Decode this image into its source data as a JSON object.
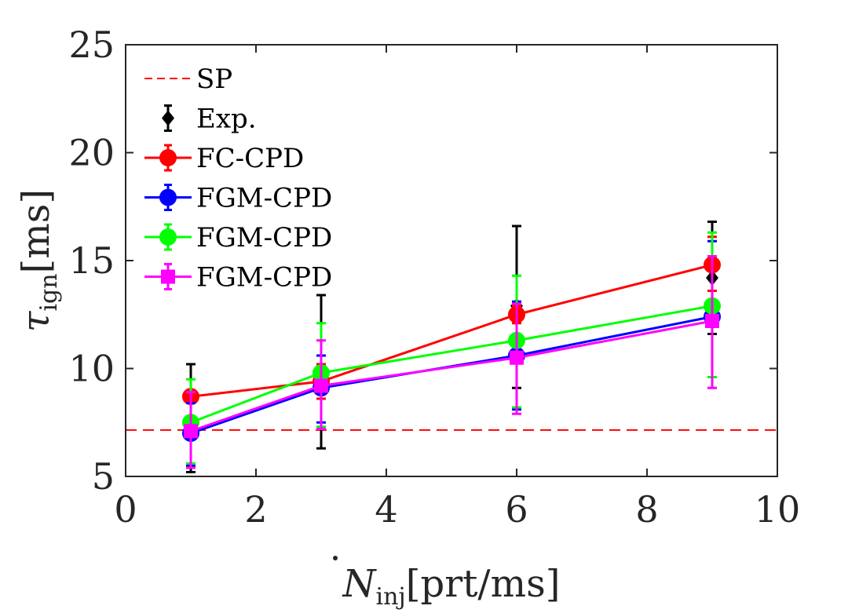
{
  "chart_data": {
    "type": "line",
    "title": "",
    "xlabel": {
      "main": "N",
      "sub": "inj",
      "unit": "[prt/ms]"
    },
    "ylabel": {
      "main": "τ",
      "sub": "ign",
      "unit": "[ms]"
    },
    "xlim": [
      0,
      10
    ],
    "ylim": [
      5,
      25
    ],
    "xticks": [
      "0",
      "2",
      "4",
      "6",
      "8",
      "10"
    ],
    "yticks": [
      "5",
      "10",
      "15",
      "20",
      "25"
    ],
    "grid": false,
    "legend_position": "top-left",
    "reference_line": {
      "name": "SP",
      "y": 7.15,
      "color": "#ff0000",
      "style": "dashed"
    },
    "series": [
      {
        "name": "Exp.",
        "color": "#000000",
        "marker": "diamond",
        "connected": false,
        "x": [
          1,
          3,
          6,
          9
        ],
        "y": [
          7.6,
          9.9,
          12.9,
          14.2
        ],
        "err_low": [
          5.2,
          6.3,
          9.1,
          11.6
        ],
        "err_high": [
          10.2,
          13.4,
          16.6,
          16.8
        ]
      },
      {
        "name": "FC-CPD",
        "color": "#ff0000",
        "marker": "circle",
        "connected": true,
        "x": [
          1,
          3,
          6,
          9
        ],
        "y": [
          8.7,
          9.4,
          12.5,
          14.8
        ],
        "err_low": [
          8.4,
          8.6,
          12.1,
          13.6
        ],
        "err_high": [
          9.0,
          10.2,
          12.9,
          16.1
        ]
      },
      {
        "name": "FGM-CPD",
        "color": "#0000ff",
        "marker": "circle",
        "connected": true,
        "x": [
          1,
          3,
          6,
          9
        ],
        "y": [
          7.0,
          9.1,
          10.6,
          12.4
        ],
        "err_low": [
          5.5,
          7.5,
          8.1,
          9.6
        ],
        "err_high": [
          8.4,
          10.6,
          13.1,
          15.9
        ]
      },
      {
        "name": "FGM-CPD",
        "color": "#00ff00",
        "marker": "circle",
        "connected": true,
        "x": [
          1,
          3,
          6,
          9
        ],
        "y": [
          7.5,
          9.8,
          11.3,
          12.9
        ],
        "err_low": [
          5.6,
          7.3,
          8.2,
          9.6
        ],
        "err_high": [
          9.5,
          12.1,
          14.3,
          16.3
        ]
      },
      {
        "name": "FGM-CPD",
        "color": "#ff00ff",
        "marker": "square",
        "connected": true,
        "x": [
          1,
          3,
          6,
          9
        ],
        "y": [
          7.1,
          9.2,
          10.5,
          12.2
        ],
        "err_low": [
          5.4,
          7.2,
          7.9,
          9.1
        ],
        "err_high": [
          8.9,
          11.3,
          13.0,
          15.2
        ]
      }
    ]
  }
}
